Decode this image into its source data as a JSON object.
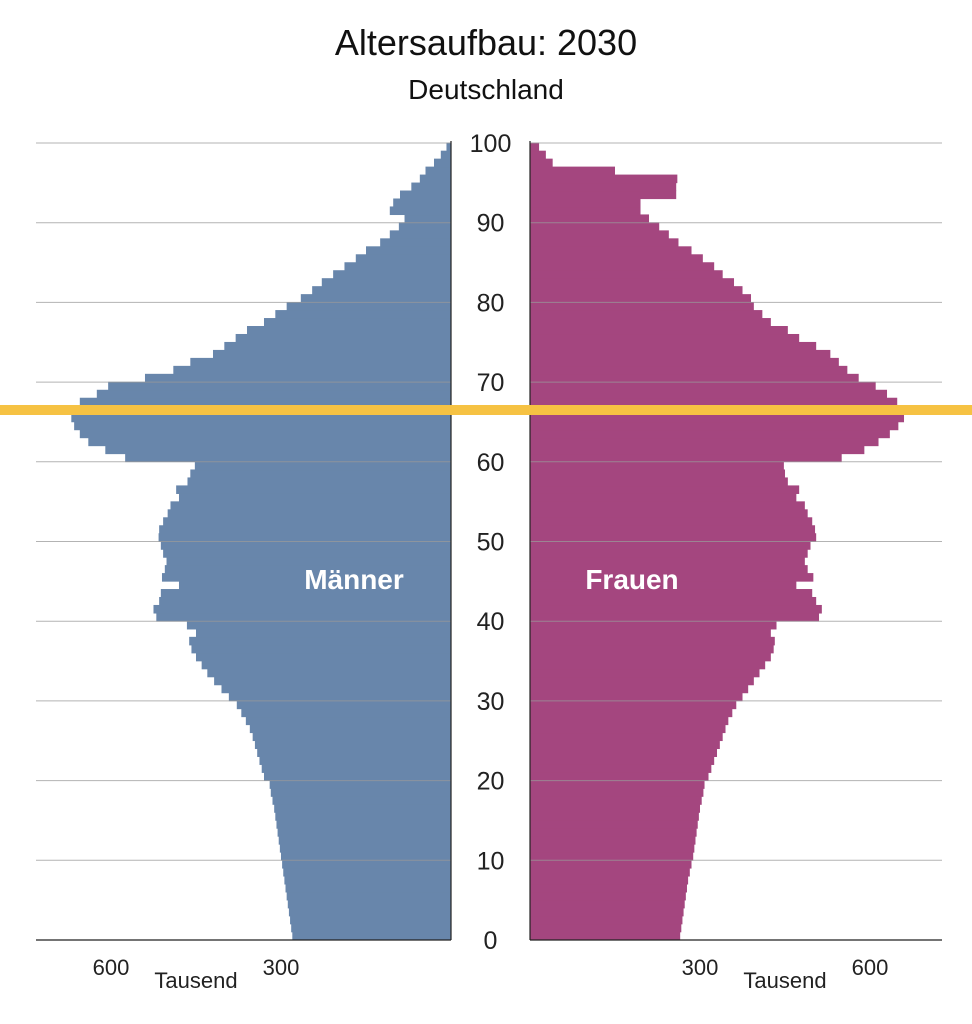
{
  "chart_data": {
    "type": "population-pyramid",
    "title": "Altersaufbau: 2030",
    "subtitle": "Deutschland",
    "y_axis": {
      "min": 0,
      "max": 100,
      "ticks": [
        0,
        10,
        20,
        30,
        40,
        50,
        60,
        70,
        80,
        90,
        100
      ]
    },
    "x_axis": {
      "unit_label": "Tausend",
      "ticks": [
        300,
        600
      ],
      "max": 730
    },
    "highlight_age": 66.5,
    "colors": {
      "men": "#6886ab",
      "women": "#a4467f",
      "highlight": "#f6c243",
      "grid": "#9a9a9a"
    },
    "series": [
      {
        "name": "Männer",
        "ages": [
          0,
          10,
          20,
          30,
          40,
          50,
          60,
          70,
          80,
          90
        ],
        "values": [
          [
            280,
            282,
            284,
            286,
            288,
            290,
            292,
            294,
            296,
            298
          ],
          [
            300,
            302,
            304,
            306,
            308,
            310,
            312,
            315,
            318,
            320
          ],
          [
            330,
            334,
            338,
            342,
            346,
            350,
            355,
            362,
            370,
            378
          ],
          [
            392,
            405,
            418,
            430,
            440,
            450,
            458,
            462,
            450,
            466
          ],
          [
            520,
            525,
            515,
            512,
            480,
            510,
            505,
            502,
            508,
            512
          ],
          [
            516,
            515,
            508,
            500,
            495,
            480,
            485,
            465,
            460,
            452
          ],
          [
            575,
            610,
            640,
            655,
            665,
            670,
            670,
            655,
            625,
            605
          ],
          [
            540,
            490,
            460,
            420,
            400,
            380,
            360,
            330,
            310,
            290
          ],
          [
            265,
            245,
            228,
            208,
            188,
            168,
            150,
            125,
            108,
            92
          ],
          [
            82,
            108,
            102,
            90,
            70,
            55,
            45,
            30,
            18,
            8
          ]
        ]
      },
      {
        "name": "Frauen",
        "ages": [
          0,
          10,
          20,
          30,
          40,
          50,
          60,
          70,
          80,
          90
        ],
        "values": [
          [
            265,
            267,
            269,
            271,
            273,
            275,
            277,
            279,
            282,
            285
          ],
          [
            288,
            290,
            292,
            294,
            296,
            298,
            300,
            303,
            306,
            308
          ],
          [
            315,
            320,
            325,
            330,
            335,
            340,
            345,
            350,
            357,
            364
          ],
          [
            375,
            385,
            395,
            405,
            415,
            425,
            430,
            432,
            425,
            435
          ],
          [
            510,
            515,
            505,
            498,
            470,
            500,
            490,
            485,
            490,
            495
          ],
          [
            505,
            503,
            498,
            490,
            485,
            470,
            475,
            455,
            450,
            448
          ],
          [
            550,
            590,
            615,
            635,
            650,
            660,
            660,
            648,
            630,
            610
          ],
          [
            580,
            560,
            545,
            530,
            505,
            475,
            455,
            425,
            410,
            395
          ],
          [
            390,
            375,
            360,
            340,
            325,
            305,
            285,
            262,
            245,
            228
          ],
          [
            210,
            195,
            195,
            258,
            258,
            260,
            150,
            40,
            28,
            16
          ]
        ]
      }
    ]
  }
}
